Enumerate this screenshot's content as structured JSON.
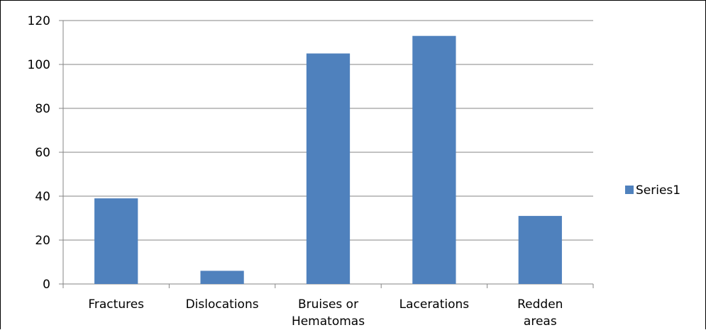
{
  "chart_data": {
    "type": "bar",
    "categories": [
      [
        "Fractures"
      ],
      [
        "Dislocations"
      ],
      [
        "Bruises or",
        "Hematomas"
      ],
      [
        "Lacerations"
      ],
      [
        "Redden",
        "areas"
      ]
    ],
    "series": [
      {
        "name": "Series1",
        "values": [
          39,
          6,
          105,
          113,
          31
        ]
      }
    ],
    "ylim": [
      0,
      120
    ],
    "yticks": [
      0,
      20,
      40,
      60,
      80,
      100,
      120
    ],
    "grid": true,
    "legend": "right",
    "colors": {
      "bar": "#4F81BD",
      "grid": "#868686",
      "axis": "#868686"
    }
  }
}
